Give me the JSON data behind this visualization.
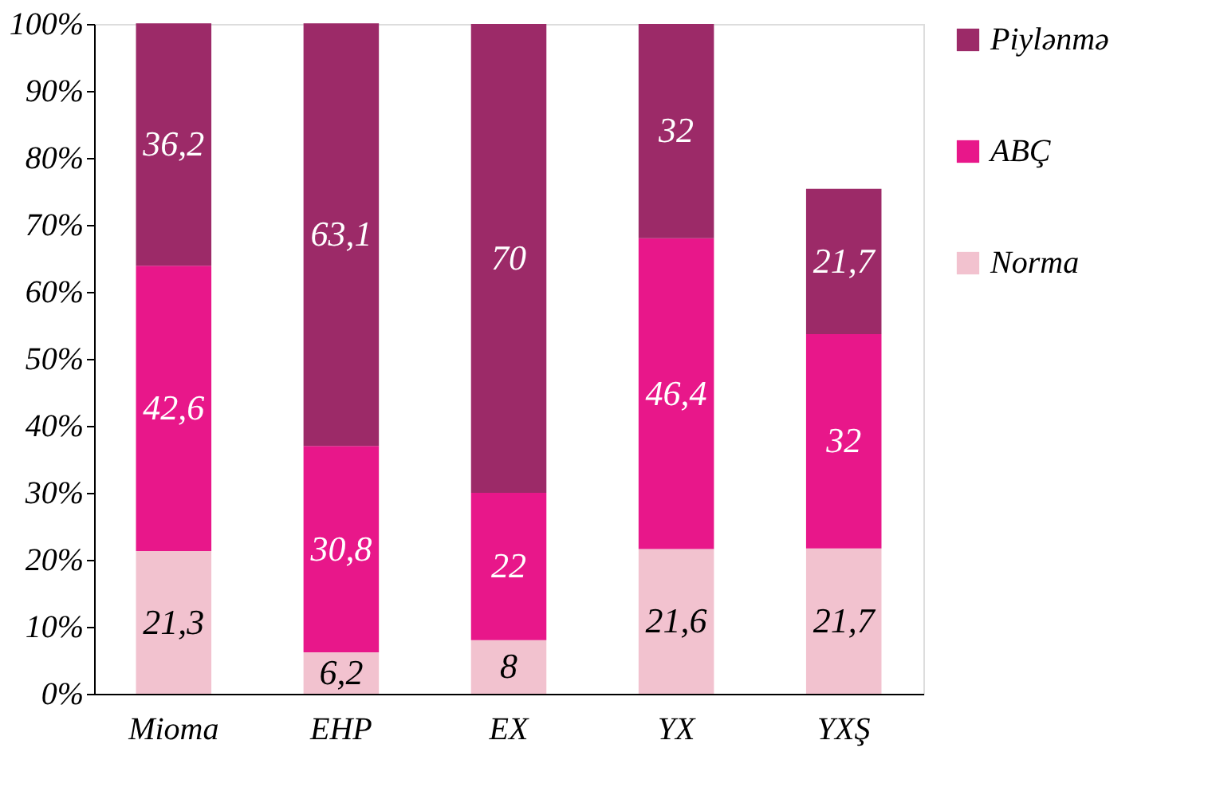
{
  "chart_data": {
    "type": "bar",
    "stacked": true,
    "categories": [
      "Mioma",
      "EHP",
      "EX",
      "YX",
      "YXŞ"
    ],
    "series": [
      {
        "name": "Norma",
        "color": "#f2c2cf",
        "values": [
          21.3,
          6.2,
          8,
          21.6,
          21.7
        ],
        "value_labels": [
          "21,3",
          "6,2",
          "8",
          "21,6",
          "21,7"
        ]
      },
      {
        "name": "ABÇ",
        "color": "#e8178a",
        "values": [
          42.6,
          30.8,
          22,
          46.4,
          32
        ],
        "value_labels": [
          "42,6",
          "30,8",
          "22",
          "46,4",
          "32"
        ]
      },
      {
        "name": "Piylənmə",
        "color": "#9c2a68",
        "values": [
          36.2,
          63.1,
          70,
          32,
          21.7
        ],
        "value_labels": [
          "36,2",
          "63,1",
          "70",
          "32",
          "21,7"
        ]
      }
    ],
    "ylim": [
      0,
      100
    ],
    "yticks": [
      {
        "value": 0,
        "label": "0%"
      },
      {
        "value": 10,
        "label": "10%"
      },
      {
        "value": 20,
        "label": "20%"
      },
      {
        "value": 30,
        "label": "30%"
      },
      {
        "value": 40,
        "label": "40%"
      },
      {
        "value": 50,
        "label": "50%"
      },
      {
        "value": 60,
        "label": "60%"
      },
      {
        "value": 70,
        "label": "70%"
      },
      {
        "value": 80,
        "label": "80%"
      },
      {
        "value": 90,
        "label": "90%"
      },
      {
        "value": 100,
        "label": "100%"
      }
    ],
    "grid": false,
    "legend": "right"
  }
}
